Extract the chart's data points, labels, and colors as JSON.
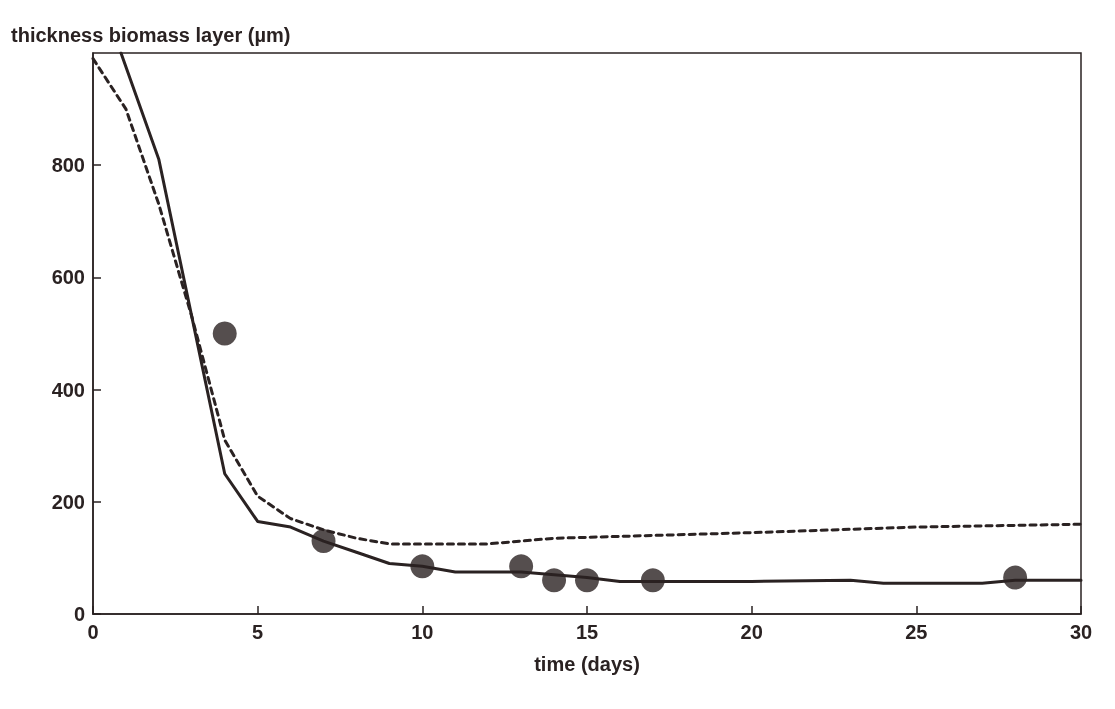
{
  "chart_data": {
    "type": "line",
    "ylabel": "thickness biomass layer (µm)",
    "xlabel": "time (days)",
    "xlim": [
      0,
      30
    ],
    "xticks": [
      0,
      5,
      10,
      15,
      20,
      25,
      30
    ],
    "ylim": [
      0,
      1000
    ],
    "yticks": [
      0,
      200,
      400,
      600,
      800
    ],
    "grid": false,
    "series": [
      {
        "line_style": "solid",
        "marker": "none",
        "color": "#2a2222",
        "x": [
          0.85,
          2,
          3,
          4,
          5,
          6,
          7,
          8,
          9,
          10,
          11,
          12,
          13,
          14,
          15,
          16,
          17,
          20,
          23,
          24,
          27,
          28,
          30
        ],
        "values": [
          1000,
          810,
          530,
          250,
          165,
          155,
          130,
          110,
          90,
          85,
          75,
          75,
          75,
          70,
          65,
          58,
          58,
          58,
          60,
          55,
          55,
          60,
          60
        ]
      },
      {
        "line_style": "dashed",
        "marker": "none",
        "color": "#2a2222",
        "x": [
          0,
          1,
          2,
          3,
          4,
          5,
          6,
          7,
          8,
          9,
          10,
          11,
          12,
          13,
          14,
          17,
          20,
          25,
          30
        ],
        "values": [
          990,
          900,
          730,
          530,
          310,
          210,
          170,
          150,
          135,
          125,
          125,
          125,
          125,
          130,
          135,
          140,
          145,
          155,
          160
        ]
      },
      {
        "type": "scatter",
        "marker": "circle",
        "color": "#2a2222",
        "x": [
          4,
          7,
          10,
          13,
          14,
          15,
          17,
          28
        ],
        "values": [
          500,
          130,
          85,
          85,
          60,
          60,
          60,
          65
        ]
      }
    ]
  }
}
